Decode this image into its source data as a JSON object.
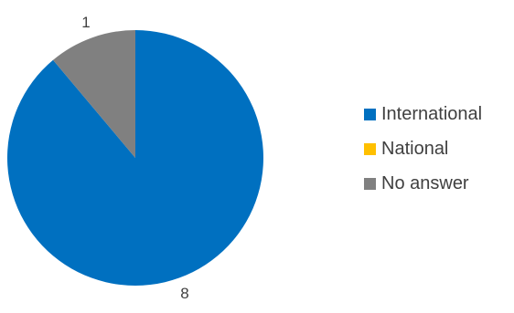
{
  "chart_data": {
    "type": "pie",
    "title": "",
    "categories": [
      "International",
      "National",
      "No answer"
    ],
    "values": [
      8,
      0,
      1
    ],
    "data_labels": [
      "8",
      "",
      "1"
    ],
    "colors": [
      "#0070C0",
      "#FFC000",
      "#808080"
    ],
    "legend_position": "right"
  },
  "legend": {
    "items": [
      {
        "label": "International",
        "color": "#0070C0"
      },
      {
        "label": "National",
        "color": "#FFC000"
      },
      {
        "label": "No answer",
        "color": "#808080"
      }
    ]
  }
}
